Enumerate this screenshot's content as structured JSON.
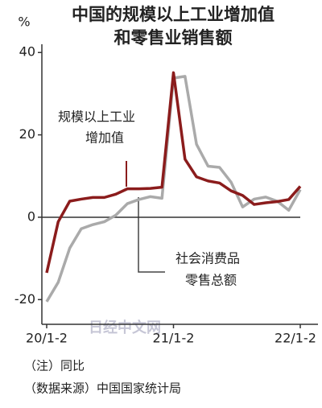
{
  "chart_data": {
    "type": "line",
    "title": [
      "中国的规模以上工业增加值",
      "和零售业销售额"
    ],
    "y_label": "%",
    "categories": [
      "20/1-2",
      null,
      null,
      null,
      null,
      null,
      null,
      null,
      null,
      null,
      null,
      "21/1-2",
      null,
      null,
      null,
      null,
      null,
      null,
      null,
      null,
      null,
      null,
      "22/1-2"
    ],
    "series": [
      {
        "name": "规模以上工业增加值",
        "color": "#8b1c1c",
        "values": [
          -13.5,
          -1.1,
          3.9,
          4.4,
          4.8,
          4.8,
          5.6,
          6.9,
          6.9,
          7.0,
          7.3,
          35.1,
          14.1,
          9.8,
          8.8,
          8.3,
          6.4,
          5.3,
          3.1,
          3.5,
          3.8,
          4.3,
          7.5
        ]
      },
      {
        "name": "社会消费品零售总额",
        "color": "#aaaaaa",
        "values": [
          -20.5,
          -15.8,
          -7.5,
          -2.8,
          -1.8,
          -1.1,
          0.5,
          3.3,
          4.3,
          5.0,
          4.6,
          33.8,
          34.2,
          17.7,
          12.4,
          12.1,
          8.5,
          2.5,
          4.4,
          4.9,
          3.9,
          1.7,
          6.7
        ]
      }
    ],
    "annotations": [
      [
        "规模以上工业",
        "增加值"
      ],
      [
        "社会消费品",
        "零售总额"
      ]
    ],
    "watermark": "日经中文网",
    "notes": [
      "（注）同比",
      "（数据来源）中国国家统计局"
    ],
    "ylim": [
      -26,
      42
    ],
    "yticks": [
      40,
      20,
      0,
      -20
    ]
  }
}
